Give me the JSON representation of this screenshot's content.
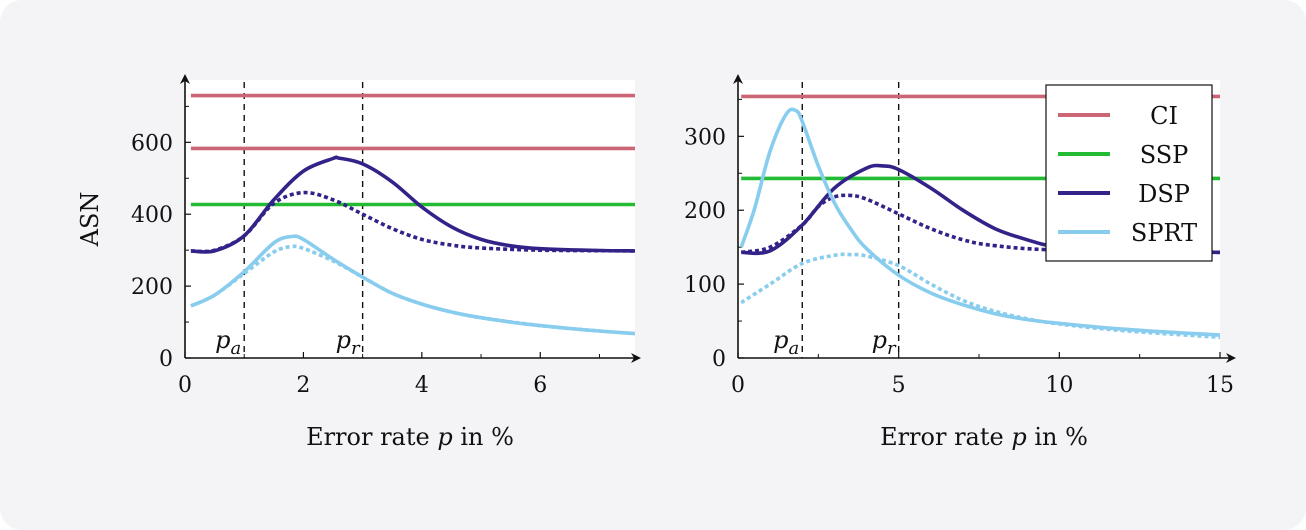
{
  "chart_data": [
    {
      "type": "line",
      "title": "",
      "xlabel": "Error rate p in %",
      "ylabel": "ASN",
      "xlim": [
        0,
        7.6
      ],
      "ylim": [
        0,
        740
      ],
      "xticks": [
        "0",
        "2",
        "4",
        "6"
      ],
      "yticks": [
        "0",
        "200",
        "400",
        "600"
      ],
      "vlines": [
        {
          "x": 1,
          "label": "p",
          "sub": "a"
        },
        {
          "x": 3,
          "label": "p",
          "sub": "r"
        }
      ],
      "series": [
        {
          "name": "CI",
          "style": "solid",
          "color": "#cc6677",
          "points": [
            [
              0.1,
              730
            ],
            [
              7.6,
              730
            ]
          ]
        },
        {
          "name": "CI",
          "style": "solid",
          "color": "#cc6677",
          "points": [
            [
              0.1,
              583
            ],
            [
              7.6,
              583
            ]
          ]
        },
        {
          "name": "SSP",
          "style": "solid",
          "color": "#22bb33",
          "points": [
            [
              0.1,
              427
            ],
            [
              7.6,
              427
            ]
          ]
        },
        {
          "name": "DSP",
          "style": "solid",
          "color": "#332288",
          "points": [
            [
              0.1,
              298
            ],
            [
              0.5,
              298
            ],
            [
              1.0,
              340
            ],
            [
              1.5,
              440
            ],
            [
              2.0,
              520
            ],
            [
              2.5,
              555
            ],
            [
              2.6,
              556
            ],
            [
              3.0,
              540
            ],
            [
              3.5,
              490
            ],
            [
              4.0,
              420
            ],
            [
              4.5,
              365
            ],
            [
              5.0,
              330
            ],
            [
              5.5,
              312
            ],
            [
              6.0,
              304
            ],
            [
              7.0,
              299
            ],
            [
              7.6,
              298
            ]
          ]
        },
        {
          "name": "DSP",
          "style": "dotted",
          "color": "#332288",
          "points": [
            [
              0.1,
              298
            ],
            [
              0.5,
              300
            ],
            [
              1.0,
              340
            ],
            [
              1.5,
              430
            ],
            [
              2.0,
              460
            ],
            [
              2.5,
              440
            ],
            [
              3.0,
              400
            ],
            [
              3.5,
              360
            ],
            [
              4.0,
              330
            ],
            [
              4.5,
              314
            ],
            [
              5.0,
              306
            ],
            [
              6.0,
              300
            ],
            [
              7.6,
              298
            ]
          ]
        },
        {
          "name": "SPRT",
          "style": "solid",
          "color": "#88ccee",
          "points": [
            [
              0.1,
              145
            ],
            [
              0.5,
              175
            ],
            [
              1.0,
              240
            ],
            [
              1.5,
              320
            ],
            [
              1.8,
              338
            ],
            [
              2.0,
              330
            ],
            [
              2.5,
              275
            ],
            [
              3.0,
              225
            ],
            [
              3.5,
              180
            ],
            [
              4.0,
              150
            ],
            [
              4.5,
              128
            ],
            [
              5.0,
              112
            ],
            [
              5.5,
              100
            ],
            [
              6.0,
              90
            ],
            [
              6.5,
              82
            ],
            [
              7.0,
              75
            ],
            [
              7.6,
              68
            ]
          ]
        },
        {
          "name": "SPRT",
          "style": "dotted",
          "color": "#88ccee",
          "points": [
            [
              0.1,
              145
            ],
            [
              0.5,
              175
            ],
            [
              1.0,
              235
            ],
            [
              1.5,
              295
            ],
            [
              1.8,
              310
            ],
            [
              2.0,
              305
            ],
            [
              2.5,
              270
            ],
            [
              3.0,
              225
            ],
            [
              3.5,
              180
            ],
            [
              4.0,
              150
            ],
            [
              4.5,
              128
            ],
            [
              5.0,
              112
            ],
            [
              6.0,
              90
            ],
            [
              7.0,
              75
            ],
            [
              7.6,
              68
            ]
          ]
        }
      ]
    },
    {
      "type": "line",
      "title": "",
      "xlabel": "Error rate p in %",
      "ylabel": "",
      "xlim": [
        0,
        15
      ],
      "ylim": [
        0,
        360
      ],
      "xticks": [
        "0",
        "5",
        "10",
        "15"
      ],
      "yticks": [
        "0",
        "100",
        "200",
        "300"
      ],
      "vlines": [
        {
          "x": 2,
          "label": "p",
          "sub": "a"
        },
        {
          "x": 5,
          "label": "p",
          "sub": "r"
        }
      ],
      "legend": {
        "position": "top-right",
        "entries": [
          {
            "label": "CI",
            "color": "#cc6677"
          },
          {
            "label": "SSP",
            "color": "#22bb33"
          },
          {
            "label": "DSP",
            "color": "#332288"
          },
          {
            "label": "SPRT",
            "color": "#88ccee"
          }
        ]
      },
      "series": [
        {
          "name": "CI",
          "style": "solid",
          "color": "#cc6677",
          "points": [
            [
              0.1,
              354
            ],
            [
              15,
              354
            ]
          ]
        },
        {
          "name": "SSP",
          "style": "solid",
          "color": "#22bb33",
          "points": [
            [
              0.1,
              243
            ],
            [
              15,
              243
            ]
          ]
        },
        {
          "name": "DSP",
          "style": "solid",
          "color": "#332288",
          "points": [
            [
              0.1,
              143
            ],
            [
              1.0,
              145
            ],
            [
              2.0,
              180
            ],
            [
              3.0,
              230
            ],
            [
              4.0,
              257
            ],
            [
              4.5,
              260
            ],
            [
              5.0,
              255
            ],
            [
              6.0,
              230
            ],
            [
              7.0,
              200
            ],
            [
              8.0,
              175
            ],
            [
              9.0,
              160
            ],
            [
              10.0,
              150
            ],
            [
              12.0,
              145
            ],
            [
              15.0,
              143
            ]
          ]
        },
        {
          "name": "DSP",
          "style": "dotted",
          "color": "#332288",
          "points": [
            [
              0.1,
              143
            ],
            [
              1.0,
              150
            ],
            [
              2.0,
              180
            ],
            [
              2.5,
              205
            ],
            [
              3.0,
              218
            ],
            [
              3.5,
              220
            ],
            [
              4.0,
              215
            ],
            [
              5.0,
              195
            ],
            [
              6.0,
              175
            ],
            [
              7.0,
              160
            ],
            [
              8.0,
              152
            ],
            [
              10.0,
              146
            ],
            [
              15.0,
              143
            ]
          ]
        },
        {
          "name": "SPRT",
          "style": "solid",
          "color": "#88ccee",
          "points": [
            [
              0.1,
              150
            ],
            [
              0.5,
              200
            ],
            [
              1.0,
              280
            ],
            [
              1.5,
              330
            ],
            [
              1.8,
              335
            ],
            [
              2.0,
              320
            ],
            [
              2.5,
              260
            ],
            [
              3.0,
              210
            ],
            [
              3.5,
              175
            ],
            [
              4.0,
              148
            ],
            [
              5.0,
              112
            ],
            [
              6.0,
              88
            ],
            [
              7.0,
              72
            ],
            [
              8.0,
              60
            ],
            [
              9.0,
              52
            ],
            [
              10.0,
              47
            ],
            [
              12.0,
              39
            ],
            [
              15.0,
              31
            ]
          ]
        },
        {
          "name": "SPRT",
          "style": "dotted",
          "color": "#88ccee",
          "points": [
            [
              0.1,
              75
            ],
            [
              1.0,
              100
            ],
            [
              2.0,
              128
            ],
            [
              3.0,
              139
            ],
            [
              3.5,
              140
            ],
            [
              4.0,
              138
            ],
            [
              5.0,
              125
            ],
            [
              6.0,
              100
            ],
            [
              7.0,
              78
            ],
            [
              8.0,
              63
            ],
            [
              9.0,
              53
            ],
            [
              10.0,
              46
            ],
            [
              12.0,
              37
            ],
            [
              15.0,
              28
            ]
          ]
        }
      ]
    }
  ]
}
